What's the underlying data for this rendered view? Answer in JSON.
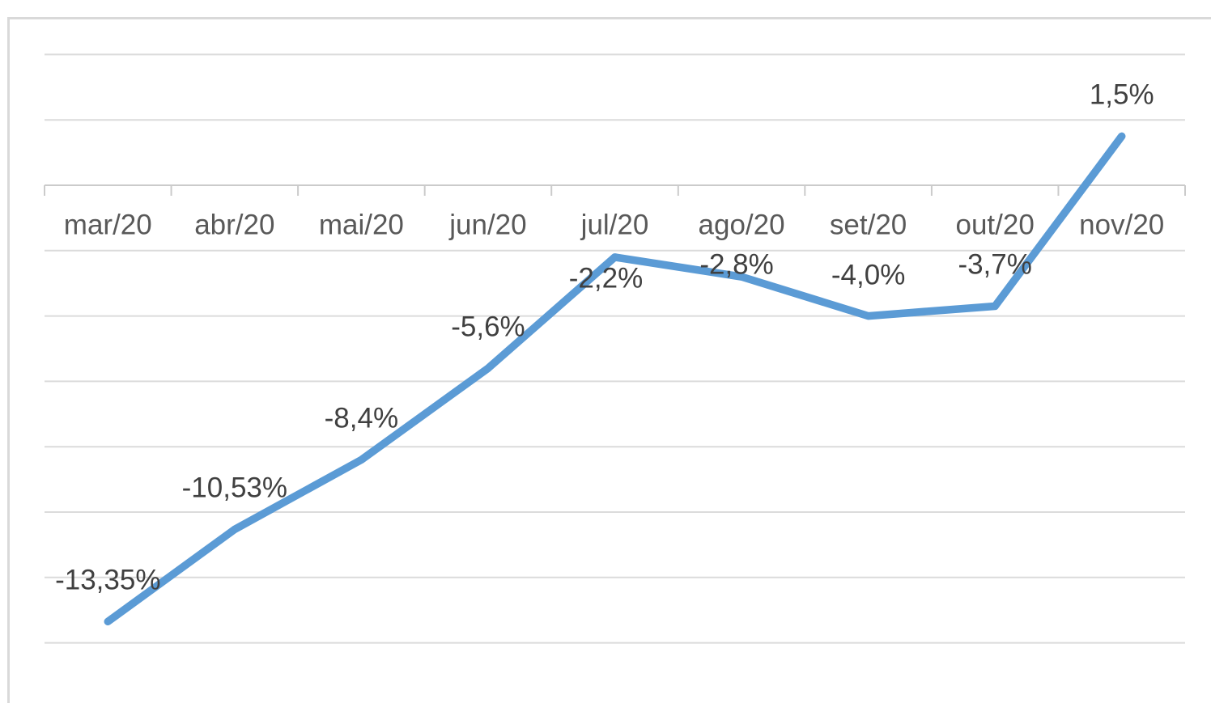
{
  "chart_data": {
    "type": "line",
    "title": "",
    "xlabel": "",
    "ylabel": "",
    "categories": [
      "mar/20",
      "abr/20",
      "mai/20",
      "jun/20",
      "jul/20",
      "ago/20",
      "set/20",
      "out/20",
      "nov/20"
    ],
    "values": [
      -13.35,
      -10.53,
      -8.4,
      -5.6,
      -2.2,
      -2.8,
      -4.0,
      -3.7,
      1.5
    ],
    "data_labels": [
      "-13,35%",
      "-10,53%",
      "-8,4%",
      "-5,6%",
      "-2,2%",
      "-2,8%",
      "-4,0%",
      "-3,7%",
      "1,5%"
    ],
    "ylim": [
      -14,
      4
    ],
    "gridline_step": 2,
    "grid": true,
    "legend": "none",
    "x_axis_position_value": 0,
    "colors": {
      "line": "#5B9BD5",
      "gridline": "#DBDBDB",
      "axis": "#CBCBCB",
      "axis_label": "#595959",
      "data_label": "#404040",
      "frame_border": "#D9D9D9",
      "background": "#FFFFFF"
    }
  }
}
